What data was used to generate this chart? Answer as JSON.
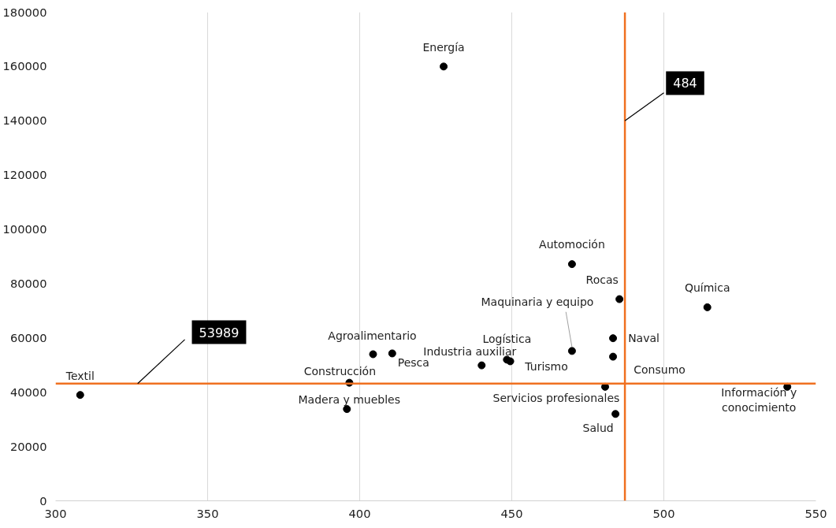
{
  "chart_data": {
    "type": "scatter",
    "x": [
      427.6,
      469.8,
      485.4,
      514.3,
      469.8,
      483.3,
      483.3,
      448.4,
      440.1,
      449.5,
      410.7,
      404.4,
      396.6,
      395.8,
      308.1,
      480.7,
      484.1,
      540.6
    ],
    "series": [
      {
        "color": "#000000",
        "values": [
          160000,
          87200,
          74300,
          71300,
          55200,
          59900,
          53100,
          52000,
          49900,
          51400,
          54300,
          54000,
          43500,
          33800,
          39000,
          42000,
          32000,
          42000
        ]
      }
    ],
    "annotations": [
      {
        "text": "Energía",
        "x": 427.6,
        "y": 160000
      },
      {
        "text": "Automoción",
        "x": 469.8,
        "y": 87200
      },
      {
        "text": "Rocas",
        "x": 485.4,
        "y": 74300
      },
      {
        "text": "Química",
        "x": 514.3,
        "y": 71300
      },
      {
        "text": "Maquinaria y equipo",
        "x": 469.8,
        "y": 55200
      },
      {
        "text": "Naval",
        "x": 483.3,
        "y": 59900
      },
      {
        "text": "Consumo",
        "x": 483.3,
        "y": 53100
      },
      {
        "text": "Logística",
        "x": 448.4,
        "y": 52000
      },
      {
        "text": "Industria auxiliar",
        "x": 440.1,
        "y": 49900
      },
      {
        "text": "Turismo",
        "x": 449.5,
        "y": 51400
      },
      {
        "text": "Pesca",
        "x": 410.7,
        "y": 54300
      },
      {
        "text": "Agroalimentario",
        "x": 404.4,
        "y": 54000
      },
      {
        "text": "Construcción",
        "x": 396.6,
        "y": 43500
      },
      {
        "text": "Madera y muebles",
        "x": 395.8,
        "y": 33800
      },
      {
        "text": "Textil",
        "x": 308.1,
        "y": 39000
      },
      {
        "text": "Servicios profesionales",
        "x": 480.7,
        "y": 42000
      },
      {
        "text": "Salud",
        "x": 484.1,
        "y": 32000
      },
      {
        "text": "Información y\nconocimiento",
        "x": 540.6,
        "y": 42000
      },
      {
        "text": "484",
        "x": 487.2,
        "y": 140000
      },
      {
        "text": "53989",
        "x": 327,
        "y": 43200
      }
    ],
    "ref_lines": [
      {
        "axis": "x",
        "value": 487.2,
        "color": "#f07020"
      },
      {
        "axis": "y",
        "value": 43200,
        "color": "#f07020"
      }
    ],
    "xlim": [
      300,
      550
    ],
    "xticks": [
      300,
      350,
      400,
      450,
      500,
      550
    ],
    "ylim": [
      0,
      180000
    ],
    "yticks": [
      0,
      20000,
      40000,
      60000,
      80000,
      100000,
      120000,
      140000,
      160000,
      180000
    ],
    "grid": "x",
    "marker": "circle"
  }
}
